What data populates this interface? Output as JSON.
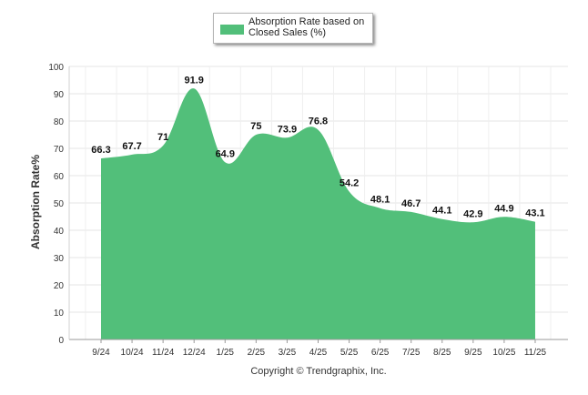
{
  "chart_data": {
    "type": "area",
    "title": "",
    "xlabel": "",
    "ylabel": "Absorption Rate%",
    "ylim": [
      0,
      100
    ],
    "yticks": [
      0,
      10,
      20,
      30,
      40,
      50,
      60,
      70,
      80,
      90,
      100
    ],
    "grid": true,
    "legend_position": "top-center",
    "categories": [
      "9/24",
      "10/24",
      "11/24",
      "12/24",
      "1/25",
      "2/25",
      "3/25",
      "4/25",
      "5/25",
      "6/25",
      "7/25",
      "8/25",
      "9/25",
      "10/25",
      "11/25"
    ],
    "series": [
      {
        "name": "Absorption Rate based on Closed Sales (%)",
        "color": "#52bf7a",
        "values": [
          66.3,
          67.7,
          71,
          91.9,
          64.9,
          75,
          73.9,
          76.8,
          54.2,
          48.1,
          46.7,
          44.1,
          42.9,
          44.9,
          43.1
        ],
        "labels": [
          "66.3",
          "67.7",
          "71",
          "91.9",
          "64.9",
          "75",
          "73.9",
          "76.8",
          "54.2",
          "48.1",
          "46.7",
          "44.1",
          "42.9",
          "44.9",
          "43.1"
        ]
      }
    ]
  },
  "legend": {
    "label": "Absorption Rate based on Closed Sales (%)"
  },
  "footer": {
    "copyright": "Copyright © Trendgraphix, Inc."
  }
}
